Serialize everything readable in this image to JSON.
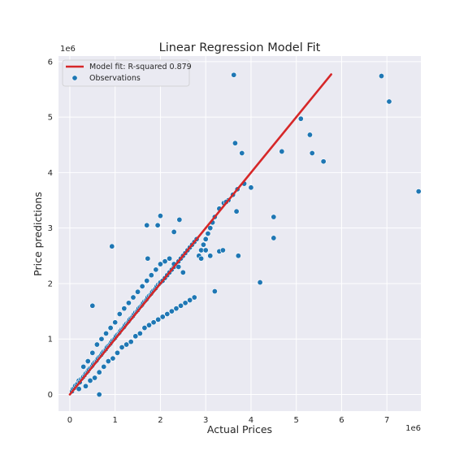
{
  "chart_data": {
    "type": "scatter",
    "title": "Linear Regression Model Fit",
    "xlabel": "Actual Prices",
    "ylabel": "Price predictions",
    "x_scale_label": "1e6",
    "y_scale_label": "1e6",
    "xlim": [
      -0.25,
      7.75
    ],
    "ylim": [
      -0.3,
      6.1
    ],
    "x_ticks": [
      0,
      1,
      2,
      3,
      4,
      5,
      6,
      7
    ],
    "y_ticks": [
      0,
      1,
      2,
      3,
      4,
      5,
      6
    ],
    "grid": true,
    "legend_position": "top-left",
    "fit_line": {
      "name": "Model fit: R-squared 0.879",
      "x": [
        0,
        5.77
      ],
      "y": [
        0,
        5.77
      ],
      "color": "#d62728"
    },
    "observations": {
      "name": "Observations",
      "color": "#1f77b4",
      "x": [
        0.05,
        0.07,
        0.1,
        0.12,
        0.15,
        0.18,
        0.2,
        0.22,
        0.25,
        0.28,
        0.3,
        0.33,
        0.35,
        0.38,
        0.4,
        0.42,
        0.45,
        0.48,
        0.5,
        0.52,
        0.55,
        0.58,
        0.6,
        0.62,
        0.65,
        0.68,
        0.7,
        0.72,
        0.75,
        0.78,
        0.8,
        0.82,
        0.85,
        0.88,
        0.9,
        0.92,
        0.95,
        0.98,
        1.0,
        1.02,
        1.05,
        1.08,
        1.1,
        1.12,
        1.15,
        1.18,
        1.2,
        1.22,
        1.25,
        1.28,
        1.3,
        1.32,
        1.35,
        1.38,
        1.4,
        1.42,
        1.45,
        1.48,
        1.5,
        1.52,
        1.55,
        1.58,
        1.6,
        1.62,
        1.65,
        1.68,
        1.7,
        1.72,
        1.75,
        1.78,
        1.8,
        1.82,
        1.85,
        1.88,
        1.9,
        1.92,
        1.95,
        1.98,
        2.0,
        2.05,
        2.1,
        2.15,
        2.2,
        2.25,
        2.3,
        2.35,
        2.4,
        2.45,
        2.5,
        2.55,
        2.6,
        2.65,
        2.7,
        2.75,
        2.8,
        2.85,
        2.9,
        2.95,
        3.0,
        3.05,
        3.1,
        3.15,
        3.2,
        3.3,
        3.4,
        3.5,
        3.6,
        3.7,
        0.3,
        0.4,
        0.5,
        0.6,
        0.7,
        0.8,
        0.9,
        1.0,
        1.1,
        1.2,
        1.3,
        1.4,
        1.5,
        1.6,
        1.7,
        1.8,
        1.9,
        2.0,
        2.1,
        2.2,
        2.3,
        2.4,
        2.5,
        0.2,
        0.35,
        0.45,
        0.55,
        0.65,
        0.75,
        0.85,
        0.95,
        1.05,
        1.15,
        1.25,
        1.35,
        1.45,
        1.55,
        1.65,
        1.75,
        1.85,
        1.95,
        2.05,
        2.15,
        2.25,
        2.35,
        2.45,
        2.55,
        2.65,
        2.75,
        0.65,
        0.93,
        0.5,
        1.7,
        1.72,
        1.94,
        2.0,
        2.3,
        2.42,
        2.9,
        3.0,
        3.1,
        3.2,
        3.3,
        3.38,
        3.45,
        3.62,
        3.65,
        3.68,
        3.72,
        3.8,
        3.85,
        4.0,
        4.2,
        4.5,
        4.5,
        4.68,
        5.1,
        5.3,
        5.35,
        5.6,
        6.88,
        7.05,
        7.7
      ],
      "y": [
        0.06,
        0.1,
        0.12,
        0.16,
        0.18,
        0.2,
        0.25,
        0.22,
        0.28,
        0.3,
        0.32,
        0.35,
        0.38,
        0.4,
        0.42,
        0.45,
        0.48,
        0.5,
        0.52,
        0.55,
        0.58,
        0.6,
        0.62,
        0.65,
        0.68,
        0.7,
        0.72,
        0.75,
        0.78,
        0.8,
        0.82,
        0.85,
        0.88,
        0.9,
        0.92,
        0.95,
        0.98,
        1.0,
        1.02,
        1.05,
        1.08,
        1.1,
        1.12,
        1.15,
        1.18,
        1.2,
        1.22,
        1.25,
        1.28,
        1.3,
        1.32,
        1.35,
        1.38,
        1.4,
        1.42,
        1.45,
        1.48,
        1.5,
        1.52,
        1.55,
        1.58,
        1.6,
        1.62,
        1.65,
        1.68,
        1.7,
        1.72,
        1.75,
        1.78,
        1.8,
        1.82,
        1.85,
        1.88,
        1.9,
        1.92,
        1.95,
        1.98,
        2.0,
        2.02,
        2.05,
        2.1,
        2.15,
        2.2,
        2.25,
        2.3,
        2.35,
        2.4,
        2.45,
        2.5,
        2.55,
        2.6,
        2.65,
        2.7,
        2.75,
        2.8,
        2.5,
        2.6,
        2.7,
        2.8,
        2.9,
        3.0,
        3.1,
        3.2,
        3.35,
        3.45,
        3.5,
        3.6,
        3.7,
        0.5,
        0.6,
        0.75,
        0.9,
        1.0,
        1.1,
        1.2,
        1.3,
        1.45,
        1.55,
        1.65,
        1.75,
        1.85,
        1.95,
        2.05,
        2.15,
        2.25,
        2.35,
        2.4,
        2.45,
        2.35,
        2.3,
        2.2,
        0.1,
        0.15,
        0.25,
        0.3,
        0.4,
        0.5,
        0.6,
        0.65,
        0.75,
        0.85,
        0.9,
        0.95,
        1.05,
        1.1,
        1.2,
        1.25,
        1.3,
        1.35,
        1.4,
        1.45,
        1.5,
        1.55,
        1.6,
        1.65,
        1.7,
        1.75,
        0.0,
        2.67,
        1.6,
        3.05,
        2.45,
        3.05,
        3.22,
        2.93,
        3.15,
        2.45,
        2.6,
        2.5,
        1.86,
        2.58,
        2.6,
        3.47,
        5.76,
        4.53,
        3.3,
        2.5,
        4.35,
        3.8,
        3.73,
        2.02,
        3.2,
        2.82,
        4.38,
        4.97,
        4.68,
        4.35,
        4.2,
        5.74,
        5.28,
        3.66
      ]
    }
  }
}
